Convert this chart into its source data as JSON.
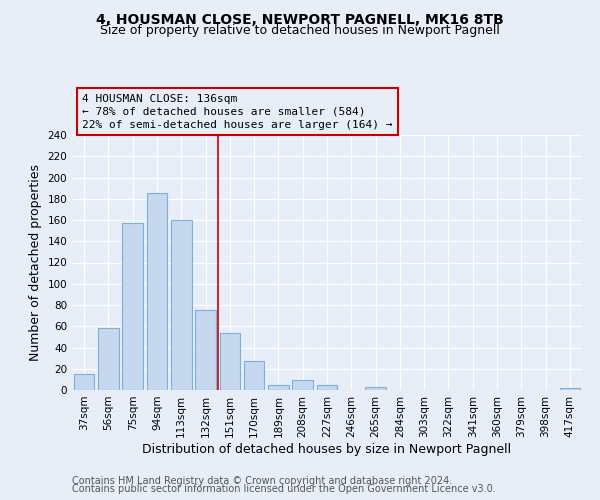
{
  "title": "4, HOUSMAN CLOSE, NEWPORT PAGNELL, MK16 8TB",
  "subtitle": "Size of property relative to detached houses in Newport Pagnell",
  "xlabel": "Distribution of detached houses by size in Newport Pagnell",
  "ylabel": "Number of detached properties",
  "bar_labels": [
    "37sqm",
    "56sqm",
    "75sqm",
    "94sqm",
    "113sqm",
    "132sqm",
    "151sqm",
    "170sqm",
    "189sqm",
    "208sqm",
    "227sqm",
    "246sqm",
    "265sqm",
    "284sqm",
    "303sqm",
    "322sqm",
    "341sqm",
    "360sqm",
    "379sqm",
    "398sqm",
    "417sqm"
  ],
  "bar_values": [
    15,
    58,
    157,
    185,
    160,
    75,
    54,
    27,
    5,
    9,
    5,
    0,
    3,
    0,
    0,
    0,
    0,
    0,
    0,
    0,
    2
  ],
  "bar_color": "#c5d8ed",
  "bar_edge_color": "#7aafe0",
  "vline_x": 5.5,
  "vline_color": "#cc0000",
  "ylim": [
    0,
    240
  ],
  "yticks": [
    0,
    20,
    40,
    60,
    80,
    100,
    120,
    140,
    160,
    180,
    200,
    220,
    240
  ],
  "annotation_title": "4 HOUSMAN CLOSE: 136sqm",
  "annotation_line1": "← 78% of detached houses are smaller (584)",
  "annotation_line2": "22% of semi-detached houses are larger (164) →",
  "annotation_box_color": "#cc0000",
  "footer_line1": "Contains HM Land Registry data © Crown copyright and database right 2024.",
  "footer_line2": "Contains public sector information licensed under the Open Government Licence v3.0.",
  "background_color": "#e8eef8",
  "grid_color": "#ffffff",
  "title_fontsize": 10,
  "subtitle_fontsize": 9,
  "axis_label_fontsize": 9,
  "tick_fontsize": 7.5,
  "annotation_fontsize": 8,
  "footer_fontsize": 7
}
